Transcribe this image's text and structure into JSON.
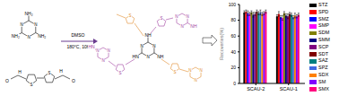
{
  "scheme": {
    "conditions": [
      "DMSO",
      "180°C, 10h"
    ],
    "atoms": {
      "nitrogen": "N",
      "amine": "NH₂",
      "imine": "NH",
      "imine_left": "HN",
      "sulfur": "S",
      "oxygen": "O",
      "hydrogen": "H"
    }
  },
  "chart_data": {
    "type": "bar",
    "y_label": "Recoveries(%)",
    "categories": [
      "SCAU-2",
      "SCAU-1"
    ],
    "ylim": [
      0,
      100
    ],
    "yticks": [
      0,
      20,
      40,
      60,
      80,
      100
    ],
    "legend": "right",
    "series": [
      {
        "name": "STZ",
        "color": "#000000",
        "values": [
          90,
          85
        ],
        "errors": [
          2,
          2
        ]
      },
      {
        "name": "SPD",
        "color": "#ff0000",
        "values": [
          91,
          88
        ],
        "errors": [
          2,
          3
        ]
      },
      {
        "name": "SMZ",
        "color": "#0000ff",
        "values": [
          89,
          84
        ],
        "errors": [
          3,
          2
        ]
      },
      {
        "name": "SMP",
        "color": "#ff00ff",
        "values": [
          88,
          83
        ],
        "errors": [
          2,
          3
        ]
      },
      {
        "name": "SDM",
        "color": "#808000",
        "values": [
          90,
          89
        ],
        "errors": [
          2,
          2
        ]
      },
      {
        "name": "SMM",
        "color": "#000080",
        "values": [
          87,
          86
        ],
        "errors": [
          3,
          2
        ]
      },
      {
        "name": "SCP",
        "color": "#800080",
        "values": [
          88,
          85
        ],
        "errors": [
          2,
          3
        ]
      },
      {
        "name": "SDT",
        "color": "#800000",
        "values": [
          91,
          88
        ],
        "errors": [
          2,
          2
        ]
      },
      {
        "name": "SAZ",
        "color": "#008080",
        "values": [
          89,
          87
        ],
        "errors": [
          2,
          2
        ]
      },
      {
        "name": "SPZ",
        "color": "#4169e1",
        "values": [
          90,
          84
        ],
        "errors": [
          3,
          2
        ]
      },
      {
        "name": "SDX",
        "color": "#ff8000",
        "values": [
          88,
          86
        ],
        "errors": [
          2,
          3
        ]
      },
      {
        "name": "SM",
        "color": "#8000ff",
        "values": [
          89,
          85
        ],
        "errors": [
          2,
          2
        ]
      },
      {
        "name": "SMX",
        "color": "#ff0080",
        "values": [
          91,
          87
        ],
        "errors": [
          2,
          2
        ]
      }
    ]
  }
}
